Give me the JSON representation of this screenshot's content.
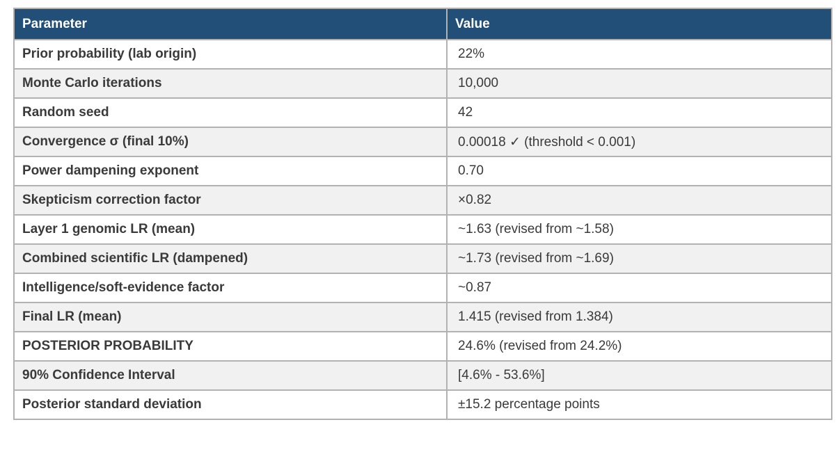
{
  "table": {
    "name": "simulation-parameters-table",
    "columns": [
      {
        "label": "Parameter"
      },
      {
        "label": "Value"
      }
    ],
    "rows": [
      {
        "parameter": "Prior probability (lab origin)",
        "value": "22%"
      },
      {
        "parameter": "Monte Carlo iterations",
        "value": "10,000"
      },
      {
        "parameter": "Random seed",
        "value": "42"
      },
      {
        "parameter": "Convergence σ (final 10%)",
        "value": "0.00018 ✓ (threshold < 0.001)"
      },
      {
        "parameter": "Power dampening exponent",
        "value": "0.70"
      },
      {
        "parameter": "Skepticism correction factor",
        "value": "×0.82"
      },
      {
        "parameter": "Layer 1 genomic LR (mean)",
        "value": "~1.63 (revised from ~1.58)"
      },
      {
        "parameter": "Combined scientific LR (dampened)",
        "value": "~1.73 (revised from ~1.69)"
      },
      {
        "parameter": "Intelligence/soft-evidence factor",
        "value": "~0.87"
      },
      {
        "parameter": "Final LR (mean)",
        "value": "1.415 (revised from 1.384)"
      },
      {
        "parameter": "POSTERIOR PROBABILITY",
        "value": "24.6% (revised from 24.2%)"
      },
      {
        "parameter": "90% Confidence Interval",
        "value": "[4.6% - 53.6%]"
      },
      {
        "parameter": "Posterior standard deviation",
        "value": "±15.2 percentage points"
      }
    ],
    "colors": {
      "header_bg": "#214F78",
      "header_text": "#FFFFFF",
      "row_bg": "#FFFFFF",
      "row_alt_bg": "#F1F1F1",
      "border": "#B2B2B2",
      "label_text": "#3A3A3A",
      "value_text": "#3A3A3A"
    }
  }
}
